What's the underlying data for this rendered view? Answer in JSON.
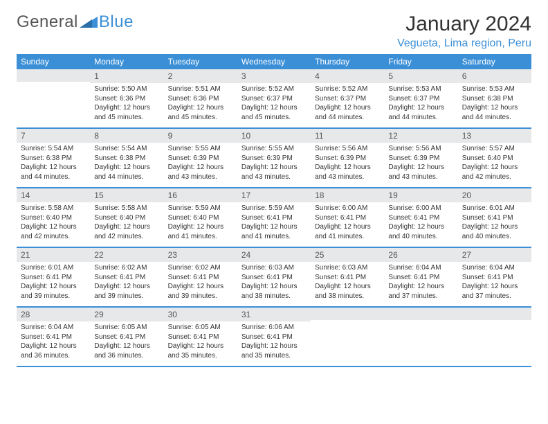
{
  "logo": {
    "part1": "General",
    "part2": "Blue"
  },
  "header": {
    "title": "January 2024",
    "location": "Vegueta, Lima region, Peru"
  },
  "colors": {
    "accent": "#3b8fd6",
    "daynum_bg": "#e7e8e9",
    "text": "#333333",
    "bg": "#ffffff"
  },
  "calendar": {
    "type": "table",
    "weekdays": [
      "Sunday",
      "Monday",
      "Tuesday",
      "Wednesday",
      "Thursday",
      "Friday",
      "Saturday"
    ],
    "weeks": [
      [
        {
          "n": "",
          "sunrise": "",
          "sunset": "",
          "daylight": ""
        },
        {
          "n": "1",
          "sunrise": "Sunrise: 5:50 AM",
          "sunset": "Sunset: 6:36 PM",
          "daylight": "Daylight: 12 hours and 45 minutes."
        },
        {
          "n": "2",
          "sunrise": "Sunrise: 5:51 AM",
          "sunset": "Sunset: 6:36 PM",
          "daylight": "Daylight: 12 hours and 45 minutes."
        },
        {
          "n": "3",
          "sunrise": "Sunrise: 5:52 AM",
          "sunset": "Sunset: 6:37 PM",
          "daylight": "Daylight: 12 hours and 45 minutes."
        },
        {
          "n": "4",
          "sunrise": "Sunrise: 5:52 AM",
          "sunset": "Sunset: 6:37 PM",
          "daylight": "Daylight: 12 hours and 44 minutes."
        },
        {
          "n": "5",
          "sunrise": "Sunrise: 5:53 AM",
          "sunset": "Sunset: 6:37 PM",
          "daylight": "Daylight: 12 hours and 44 minutes."
        },
        {
          "n": "6",
          "sunrise": "Sunrise: 5:53 AM",
          "sunset": "Sunset: 6:38 PM",
          "daylight": "Daylight: 12 hours and 44 minutes."
        }
      ],
      [
        {
          "n": "7",
          "sunrise": "Sunrise: 5:54 AM",
          "sunset": "Sunset: 6:38 PM",
          "daylight": "Daylight: 12 hours and 44 minutes."
        },
        {
          "n": "8",
          "sunrise": "Sunrise: 5:54 AM",
          "sunset": "Sunset: 6:38 PM",
          "daylight": "Daylight: 12 hours and 44 minutes."
        },
        {
          "n": "9",
          "sunrise": "Sunrise: 5:55 AM",
          "sunset": "Sunset: 6:39 PM",
          "daylight": "Daylight: 12 hours and 43 minutes."
        },
        {
          "n": "10",
          "sunrise": "Sunrise: 5:55 AM",
          "sunset": "Sunset: 6:39 PM",
          "daylight": "Daylight: 12 hours and 43 minutes."
        },
        {
          "n": "11",
          "sunrise": "Sunrise: 5:56 AM",
          "sunset": "Sunset: 6:39 PM",
          "daylight": "Daylight: 12 hours and 43 minutes."
        },
        {
          "n": "12",
          "sunrise": "Sunrise: 5:56 AM",
          "sunset": "Sunset: 6:39 PM",
          "daylight": "Daylight: 12 hours and 43 minutes."
        },
        {
          "n": "13",
          "sunrise": "Sunrise: 5:57 AM",
          "sunset": "Sunset: 6:40 PM",
          "daylight": "Daylight: 12 hours and 42 minutes."
        }
      ],
      [
        {
          "n": "14",
          "sunrise": "Sunrise: 5:58 AM",
          "sunset": "Sunset: 6:40 PM",
          "daylight": "Daylight: 12 hours and 42 minutes."
        },
        {
          "n": "15",
          "sunrise": "Sunrise: 5:58 AM",
          "sunset": "Sunset: 6:40 PM",
          "daylight": "Daylight: 12 hours and 42 minutes."
        },
        {
          "n": "16",
          "sunrise": "Sunrise: 5:59 AM",
          "sunset": "Sunset: 6:40 PM",
          "daylight": "Daylight: 12 hours and 41 minutes."
        },
        {
          "n": "17",
          "sunrise": "Sunrise: 5:59 AM",
          "sunset": "Sunset: 6:41 PM",
          "daylight": "Daylight: 12 hours and 41 minutes."
        },
        {
          "n": "18",
          "sunrise": "Sunrise: 6:00 AM",
          "sunset": "Sunset: 6:41 PM",
          "daylight": "Daylight: 12 hours and 41 minutes."
        },
        {
          "n": "19",
          "sunrise": "Sunrise: 6:00 AM",
          "sunset": "Sunset: 6:41 PM",
          "daylight": "Daylight: 12 hours and 40 minutes."
        },
        {
          "n": "20",
          "sunrise": "Sunrise: 6:01 AM",
          "sunset": "Sunset: 6:41 PM",
          "daylight": "Daylight: 12 hours and 40 minutes."
        }
      ],
      [
        {
          "n": "21",
          "sunrise": "Sunrise: 6:01 AM",
          "sunset": "Sunset: 6:41 PM",
          "daylight": "Daylight: 12 hours and 39 minutes."
        },
        {
          "n": "22",
          "sunrise": "Sunrise: 6:02 AM",
          "sunset": "Sunset: 6:41 PM",
          "daylight": "Daylight: 12 hours and 39 minutes."
        },
        {
          "n": "23",
          "sunrise": "Sunrise: 6:02 AM",
          "sunset": "Sunset: 6:41 PM",
          "daylight": "Daylight: 12 hours and 39 minutes."
        },
        {
          "n": "24",
          "sunrise": "Sunrise: 6:03 AM",
          "sunset": "Sunset: 6:41 PM",
          "daylight": "Daylight: 12 hours and 38 minutes."
        },
        {
          "n": "25",
          "sunrise": "Sunrise: 6:03 AM",
          "sunset": "Sunset: 6:41 PM",
          "daylight": "Daylight: 12 hours and 38 minutes."
        },
        {
          "n": "26",
          "sunrise": "Sunrise: 6:04 AM",
          "sunset": "Sunset: 6:41 PM",
          "daylight": "Daylight: 12 hours and 37 minutes."
        },
        {
          "n": "27",
          "sunrise": "Sunrise: 6:04 AM",
          "sunset": "Sunset: 6:41 PM",
          "daylight": "Daylight: 12 hours and 37 minutes."
        }
      ],
      [
        {
          "n": "28",
          "sunrise": "Sunrise: 6:04 AM",
          "sunset": "Sunset: 6:41 PM",
          "daylight": "Daylight: 12 hours and 36 minutes."
        },
        {
          "n": "29",
          "sunrise": "Sunrise: 6:05 AM",
          "sunset": "Sunset: 6:41 PM",
          "daylight": "Daylight: 12 hours and 36 minutes."
        },
        {
          "n": "30",
          "sunrise": "Sunrise: 6:05 AM",
          "sunset": "Sunset: 6:41 PM",
          "daylight": "Daylight: 12 hours and 35 minutes."
        },
        {
          "n": "31",
          "sunrise": "Sunrise: 6:06 AM",
          "sunset": "Sunset: 6:41 PM",
          "daylight": "Daylight: 12 hours and 35 minutes."
        },
        {
          "n": "",
          "sunrise": "",
          "sunset": "",
          "daylight": ""
        },
        {
          "n": "",
          "sunrise": "",
          "sunset": "",
          "daylight": ""
        },
        {
          "n": "",
          "sunrise": "",
          "sunset": "",
          "daylight": ""
        }
      ]
    ]
  }
}
